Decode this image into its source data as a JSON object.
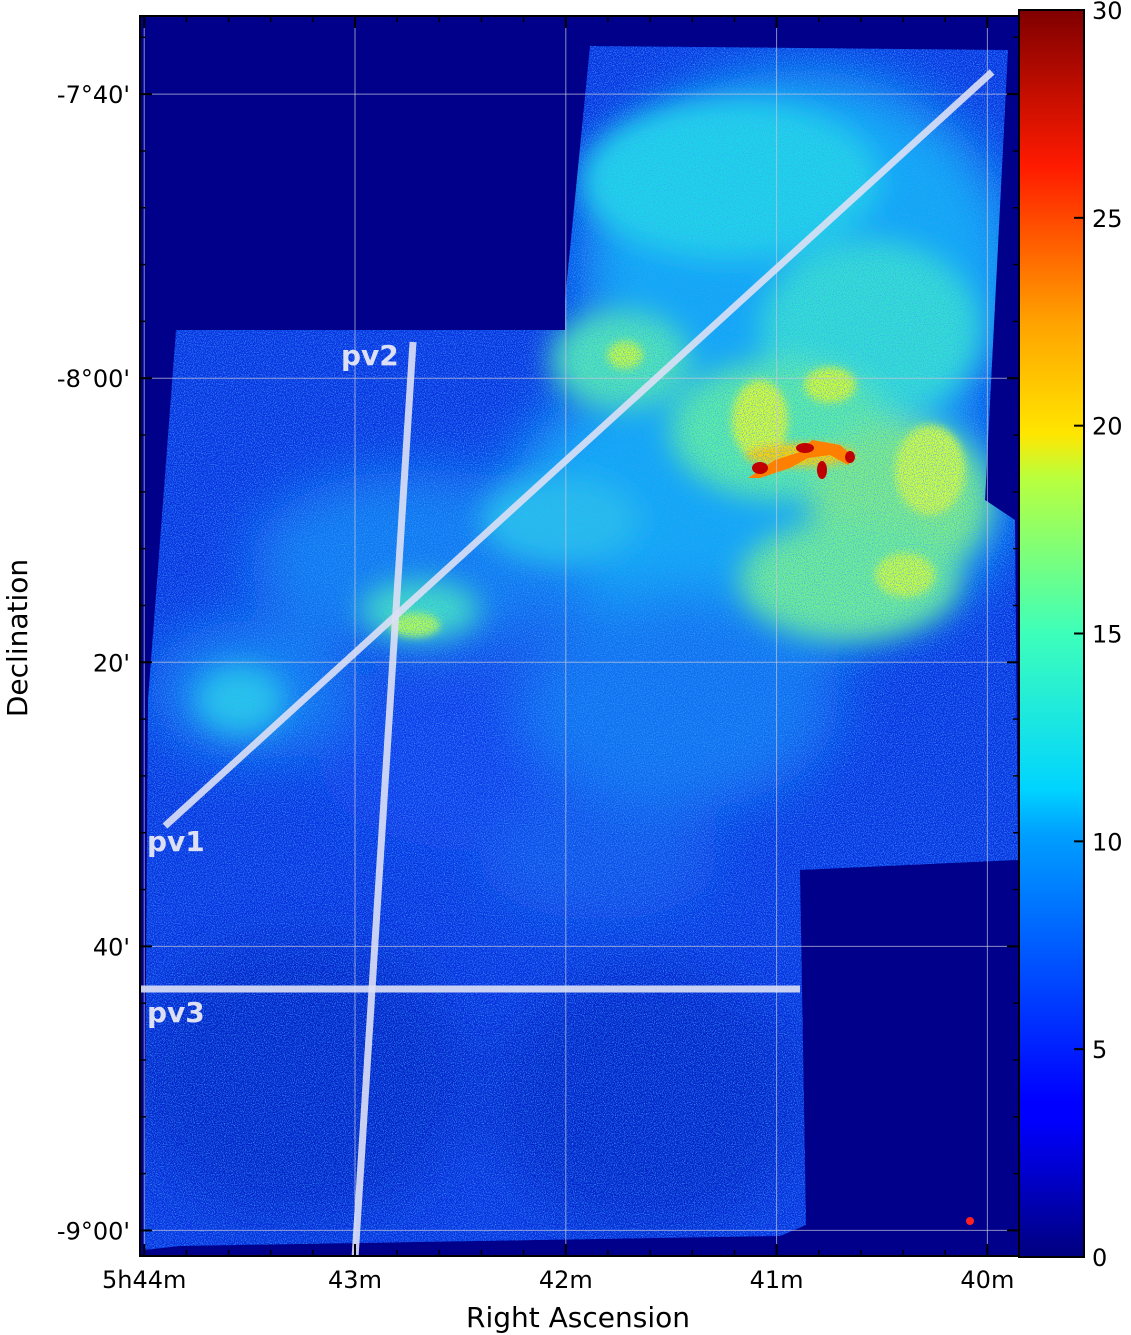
{
  "figure": {
    "x_axis_title": "Right Ascension",
    "y_axis_title": "Declination",
    "x_ticks": [
      {
        "label": "5h44m",
        "ra_min": 44
      },
      {
        "label": "43m",
        "ra_min": 43
      },
      {
        "label": "42m",
        "ra_min": 42
      },
      {
        "label": "41m",
        "ra_min": 41
      },
      {
        "label": "40m",
        "ra_min": 40
      }
    ],
    "y_ticks": [
      {
        "label": "-7°40'",
        "dec_arcmin": -460
      },
      {
        "label": "-8°00'",
        "dec_arcmin": -480
      },
      {
        "label": "20'",
        "dec_arcmin": -500
      },
      {
        "label": "40'",
        "dec_arcmin": -520
      },
      {
        "label": "-9°00'",
        "dec_arcmin": -540
      }
    ],
    "x_range_ra_min": [
      44.02,
      39.85
    ],
    "y_range_dec_arcmin": [
      -454.5,
      -541.8
    ],
    "grid": true
  },
  "image": {
    "colormap": "jet",
    "background_color": "#00008b",
    "bright_feature_color": "#ffd200",
    "peak_color": "#c00000"
  },
  "cuts": [
    {
      "name": "pv1",
      "color": "#dde0f5"
    },
    {
      "name": "pv2",
      "color": "#dde0f5"
    },
    {
      "name": "pv3",
      "color": "#dde0f5"
    }
  ],
  "colorbar": {
    "min": 0,
    "max": 30,
    "ticks": [
      {
        "value": 0,
        "label": "0"
      },
      {
        "value": 5,
        "label": "5"
      },
      {
        "value": 10,
        "label": "10"
      },
      {
        "value": 15,
        "label": "15"
      },
      {
        "value": 20,
        "label": "20"
      },
      {
        "value": 25,
        "label": "25"
      },
      {
        "value": 30,
        "label": "30"
      }
    ]
  }
}
